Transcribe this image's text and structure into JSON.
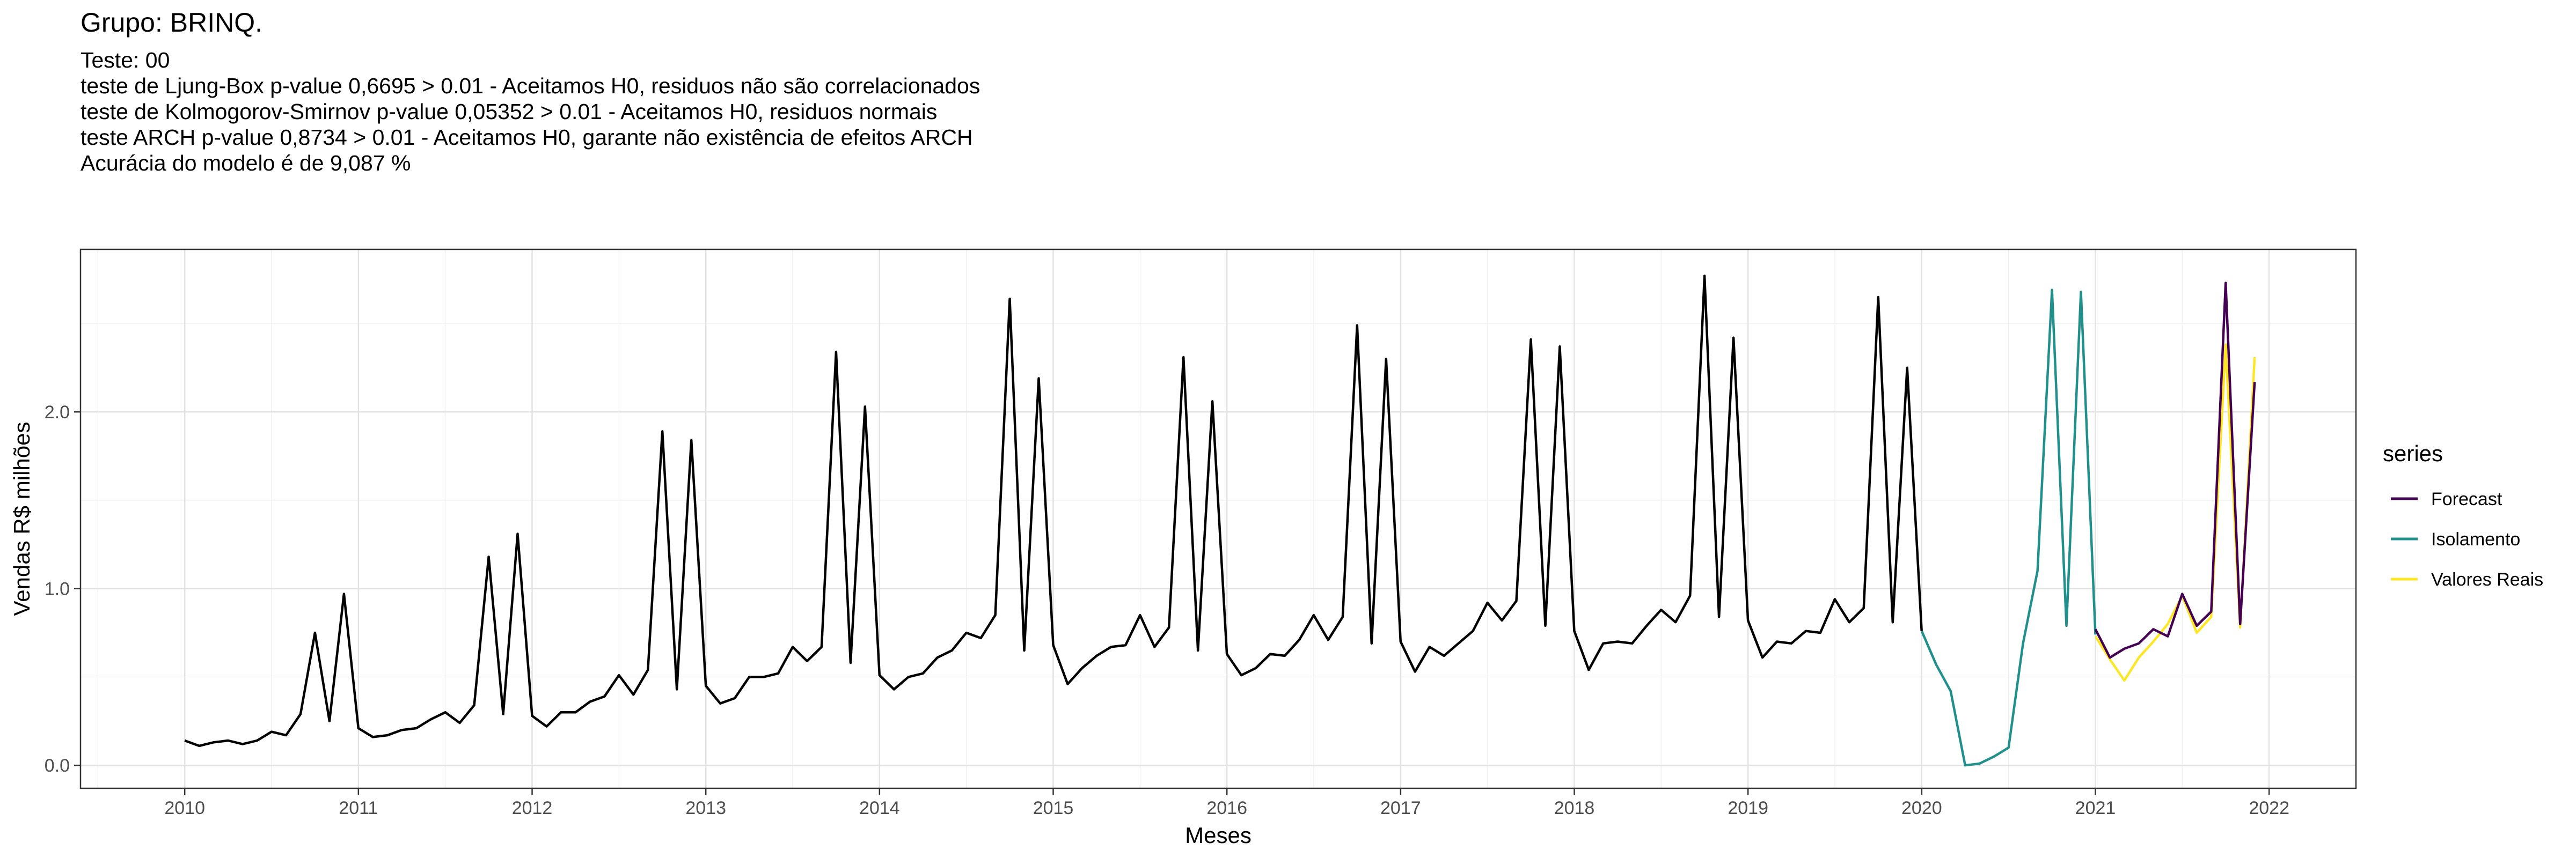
{
  "chart_data": {
    "type": "line",
    "title": "Grupo: BRINQ.",
    "subtitle": [
      "Teste: 00",
      "teste de Ljung-Box p-value 0,6695 > 0.01 - Aceitamos H0, residuos não são correlacionados",
      "teste de Kolmogorov-Smirnov p-value 0,05352 > 0.01 - Aceitamos H0, residuos normais",
      "teste ARCH p-value 0,8734 > 0.01 - Aceitamos H0, garante não existência de efeitos ARCH",
      "Acurácia do modelo é de 9,087 %"
    ],
    "xlabel": "Meses",
    "ylabel": "Vendas R$ milhões",
    "xlim": [
      2009.4,
      2022.5
    ],
    "ylim": [
      -0.13,
      2.92
    ],
    "x_ticks": [
      2010,
      2011,
      2012,
      2013,
      2014,
      2015,
      2016,
      2017,
      2018,
      2019,
      2020,
      2021,
      2022
    ],
    "x_tick_labels": [
      "2010",
      "2011",
      "2012",
      "2013",
      "2014",
      "2015",
      "2016",
      "2017",
      "2018",
      "2019",
      "2020",
      "2021",
      "2022"
    ],
    "y_ticks": [
      0,
      1,
      2
    ],
    "y_tick_labels": [
      "0.0",
      "1.0",
      "2.0"
    ],
    "grid": true,
    "legend_title": "series",
    "legend_position": "right",
    "series": [
      {
        "name": "",
        "color": "#000000",
        "start": 2010.0,
        "step": 0.08333,
        "values": [
          0.14,
          0.11,
          0.13,
          0.14,
          0.12,
          0.14,
          0.19,
          0.17,
          0.29,
          0.75,
          0.25,
          0.97,
          0.21,
          0.16,
          0.17,
          0.2,
          0.21,
          0.26,
          0.3,
          0.24,
          0.34,
          1.18,
          0.29,
          1.31,
          0.28,
          0.22,
          0.3,
          0.3,
          0.36,
          0.39,
          0.51,
          0.4,
          0.54,
          1.89,
          0.43,
          1.84,
          0.45,
          0.35,
          0.38,
          0.5,
          0.5,
          0.52,
          0.67,
          0.59,
          0.67,
          2.34,
          0.58,
          2.03,
          0.51,
          0.43,
          0.5,
          0.52,
          0.61,
          0.65,
          0.75,
          0.72,
          0.85,
          2.64,
          0.65,
          2.19,
          0.68,
          0.46,
          0.55,
          0.62,
          0.67,
          0.68,
          0.85,
          0.67,
          0.78,
          2.31,
          0.65,
          2.06,
          0.63,
          0.51,
          0.55,
          0.63,
          0.62,
          0.71,
          0.85,
          0.71,
          0.84,
          2.49,
          0.69,
          2.3,
          0.7,
          0.53,
          0.67,
          0.62,
          0.69,
          0.76,
          0.92,
          0.82,
          0.93,
          2.41,
          0.79,
          2.37,
          0.76,
          0.54,
          0.69,
          0.7,
          0.69,
          0.79,
          0.88,
          0.81,
          0.96,
          2.77,
          0.84,
          2.42,
          0.82,
          0.61,
          0.7,
          0.69,
          0.76,
          0.75,
          0.94,
          0.81,
          0.89,
          2.65,
          0.81,
          2.25,
          0.76
        ]
      },
      {
        "name": "Forecast",
        "color": "#440154",
        "start": 2021.0,
        "step": 0.08333,
        "values": [
          0.77,
          0.61,
          0.66,
          0.69,
          0.77,
          0.73,
          0.97,
          0.79,
          0.87,
          2.73,
          0.8,
          2.17
        ]
      },
      {
        "name": "Isolamento",
        "color": "#21908C",
        "start": 2020.0,
        "step": 0.08333,
        "values": [
          0.76,
          0.57,
          0.42,
          0.0,
          0.01,
          0.05,
          0.1,
          0.69,
          1.1,
          2.69,
          0.79,
          2.68,
          0.74
        ]
      },
      {
        "name": "Valores Reais",
        "color": "#FDE725",
        "start": 2021.0,
        "step": 0.08333,
        "values": [
          0.73,
          0.6,
          0.48,
          0.61,
          0.7,
          0.8,
          0.96,
          0.75,
          0.84,
          2.38,
          0.78,
          2.31
        ]
      }
    ]
  }
}
